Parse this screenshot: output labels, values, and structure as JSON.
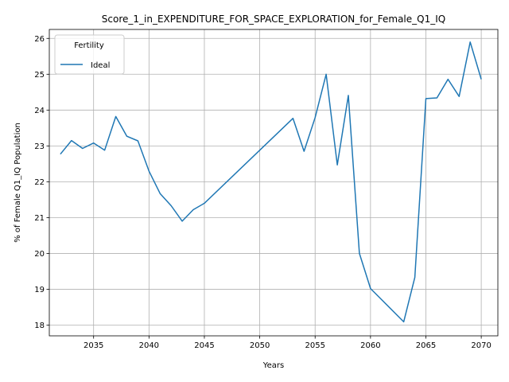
{
  "chart_data": {
    "type": "line",
    "title": "Score_1_in_EXPENDITURE_FOR_SPACE_EXPLORATION_for_Female_Q1_IQ",
    "xlabel": "Years",
    "ylabel": "% of Female Q1_IQ Population",
    "xlim": [
      2031,
      2071.5
    ],
    "ylim": [
      17.7,
      26.25
    ],
    "xticks": [
      2035,
      2040,
      2045,
      2050,
      2055,
      2060,
      2065,
      2070
    ],
    "yticks": [
      18,
      19,
      20,
      21,
      22,
      23,
      24,
      25,
      26
    ],
    "grid": true,
    "legend": {
      "title": "Fertility",
      "placement": "top-left"
    },
    "series": [
      {
        "name": "Ideal",
        "color": "#1f77b4",
        "x": [
          2032,
          2033,
          2034,
          2035,
          2036,
          2037,
          2038,
          2039,
          2040,
          2041,
          2042,
          2043,
          2044,
          2045,
          2053,
          2054,
          2055,
          2056,
          2057,
          2058,
          2059,
          2060,
          2061,
          2063,
          2064,
          2065,
          2066,
          2067,
          2068,
          2069,
          2070
        ],
        "values": [
          22.77,
          23.15,
          22.93,
          23.08,
          22.88,
          23.82,
          23.27,
          23.14,
          22.3,
          21.67,
          21.33,
          20.9,
          21.22,
          21.4,
          23.77,
          22.85,
          23.79,
          25.0,
          22.47,
          24.41,
          20.0,
          19.02,
          18.71,
          18.09,
          19.33,
          24.32,
          24.34,
          24.86,
          24.38,
          25.9,
          24.86
        ]
      }
    ]
  }
}
